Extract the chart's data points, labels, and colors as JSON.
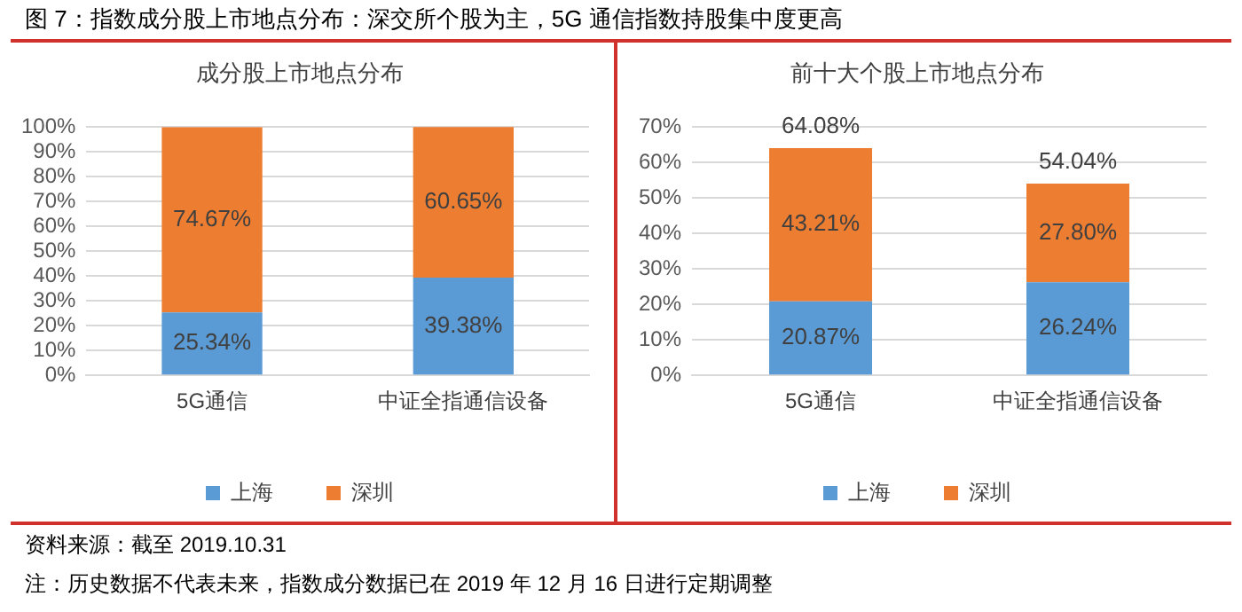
{
  "chart_data": [
    {
      "type": "bar",
      "title": "成分股上市地点分布",
      "categories": [
        "5G通信",
        "中证全指通信设备"
      ],
      "stacked": true,
      "grid": "y",
      "legend": "bottom",
      "ylim": [
        0,
        100
      ],
      "yticks": [
        {
          "value": 0,
          "label": "0%"
        },
        {
          "value": 10,
          "label": "10%"
        },
        {
          "value": 20,
          "label": "20%"
        },
        {
          "value": 30,
          "label": "30%"
        },
        {
          "value": 40,
          "label": "40%"
        },
        {
          "value": 50,
          "label": "50%"
        },
        {
          "value": 60,
          "label": "60%"
        },
        {
          "value": 70,
          "label": "70%"
        },
        {
          "value": 80,
          "label": "80%"
        },
        {
          "value": 90,
          "label": "90%"
        },
        {
          "value": 100,
          "label": "100%"
        }
      ],
      "series": [
        {
          "name": "上海",
          "color": "#5b9bd5",
          "values": [
            25.34,
            39.38
          ],
          "value_labels": [
            "25.34%",
            "39.38%"
          ]
        },
        {
          "name": "深圳",
          "color": "#ed7d31",
          "values": [
            74.67,
            60.65
          ],
          "value_labels": [
            "74.67%",
            "60.65%"
          ]
        }
      ],
      "annotations": [
        "图 7：指数成分股上市地点分布：深交所个股为主，5G 通信指数持股集中度更高",
        "资料来源：截至 2019.10.31",
        "注：历史数据不代表未来，指数成分数据已在 2019 年 12 月 16 日进行定期调整"
      ]
    },
    {
      "type": "bar",
      "title": "前十大个股上市地点分布",
      "categories": [
        "5G通信",
        "中证全指通信设备"
      ],
      "stacked": true,
      "grid": "y",
      "legend": "bottom",
      "ylim": [
        0,
        70
      ],
      "yticks": [
        {
          "value": 0,
          "label": "0%"
        },
        {
          "value": 10,
          "label": "10%"
        },
        {
          "value": 20,
          "label": "20%"
        },
        {
          "value": 30,
          "label": "30%"
        },
        {
          "value": 40,
          "label": "40%"
        },
        {
          "value": 50,
          "label": "50%"
        },
        {
          "value": 60,
          "label": "60%"
        },
        {
          "value": 70,
          "label": "70%"
        }
      ],
      "series": [
        {
          "name": "上海",
          "color": "#5b9bd5",
          "values": [
            20.87,
            26.24
          ],
          "value_labels": [
            "20.87%",
            "26.24%"
          ]
        },
        {
          "name": "深圳",
          "color": "#ed7d31",
          "values": [
            43.21,
            27.8
          ],
          "value_labels": [
            "43.21%",
            "27.80%"
          ]
        }
      ],
      "totals": [
        "64.08%",
        "54.04%"
      ]
    }
  ]
}
